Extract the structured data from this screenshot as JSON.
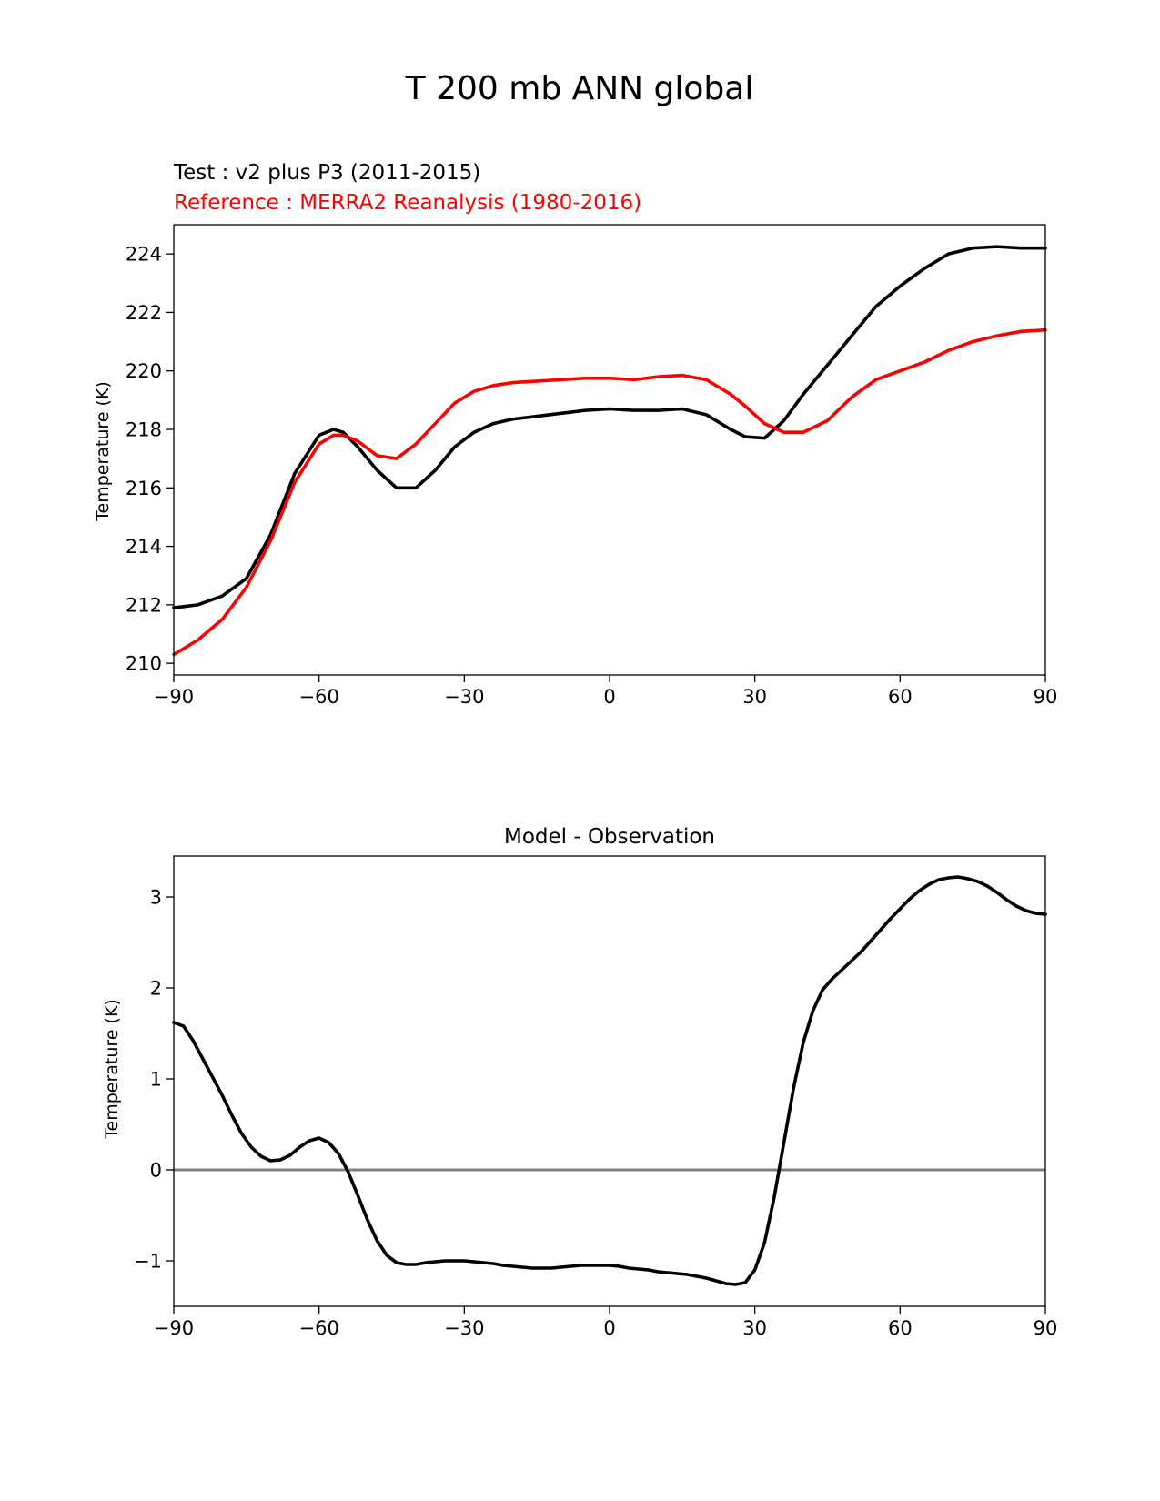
{
  "figure": {
    "title": "T 200 mb ANN global"
  },
  "colors": {
    "test": "#000000",
    "reference": "#ff0000",
    "zero_line": "#808080"
  },
  "chart_data": [
    {
      "type": "line",
      "test_label": "Test : v2 plus P3 (2011-2015)",
      "reference_label": "Reference : MERRA2 Reanalysis (1980-2016)",
      "xlabel": "",
      "ylabel": "Temperature (K)",
      "xlim": [
        -90,
        90
      ],
      "ylim": [
        209.6,
        225
      ],
      "xticks": [
        -90,
        -60,
        -30,
        0,
        30,
        60,
        90
      ],
      "xtick_labels": [
        "−90",
        "−60",
        "−30",
        "0",
        "30",
        "60",
        "90"
      ],
      "yticks": [
        210,
        212,
        214,
        216,
        218,
        220,
        222,
        224
      ],
      "ytick_labels": [
        "210",
        "212",
        "214",
        "216",
        "218",
        "220",
        "222",
        "224"
      ],
      "series": [
        {
          "name": "Test",
          "x": [
            -90,
            -85,
            -80,
            -75,
            -70,
            -65,
            -60,
            -57,
            -55,
            -52,
            -48,
            -44,
            -40,
            -36,
            -32,
            -28,
            -24,
            -20,
            -15,
            -10,
            -5,
            0,
            5,
            10,
            15,
            20,
            25,
            28,
            32,
            36,
            40,
            45,
            50,
            55,
            60,
            65,
            70,
            75,
            80,
            85,
            90
          ],
          "values": [
            211.9,
            212.0,
            212.3,
            212.9,
            214.4,
            216.5,
            217.8,
            218.0,
            217.9,
            217.4,
            216.6,
            216.0,
            216.0,
            216.6,
            217.4,
            217.9,
            218.2,
            218.35,
            218.45,
            218.55,
            218.65,
            218.7,
            218.65,
            218.65,
            218.7,
            218.5,
            218.0,
            217.75,
            217.7,
            218.3,
            219.2,
            220.2,
            221.2,
            222.2,
            222.9,
            223.5,
            224.0,
            224.2,
            224.25,
            224.2,
            224.2
          ]
        },
        {
          "name": "Reference",
          "x": [
            -90,
            -85,
            -80,
            -75,
            -70,
            -65,
            -60,
            -57,
            -55,
            -52,
            -48,
            -44,
            -40,
            -36,
            -32,
            -28,
            -24,
            -20,
            -15,
            -10,
            -5,
            0,
            5,
            10,
            15,
            20,
            25,
            28,
            32,
            36,
            40,
            45,
            50,
            55,
            60,
            65,
            70,
            75,
            80,
            85,
            90
          ],
          "values": [
            210.3,
            210.8,
            211.5,
            212.6,
            214.2,
            216.2,
            217.5,
            217.8,
            217.8,
            217.6,
            217.1,
            217.0,
            217.5,
            218.2,
            218.9,
            219.3,
            219.5,
            219.6,
            219.65,
            219.7,
            219.75,
            219.75,
            219.7,
            219.8,
            219.85,
            219.7,
            219.2,
            218.8,
            218.2,
            217.9,
            217.9,
            218.3,
            219.1,
            219.7,
            220.0,
            220.3,
            220.7,
            221.0,
            221.2,
            221.35,
            221.4
          ]
        }
      ]
    },
    {
      "type": "line",
      "title": "Model - Observation",
      "xlabel": "",
      "ylabel": "Temperature (K)",
      "xlim": [
        -90,
        90
      ],
      "ylim": [
        -1.5,
        3.45
      ],
      "xticks": [
        -90,
        -60,
        -30,
        0,
        30,
        60,
        90
      ],
      "xtick_labels": [
        "−90",
        "−60",
        "−30",
        "0",
        "30",
        "60",
        "90"
      ],
      "yticks": [
        -1,
        0,
        1,
        2,
        3
      ],
      "ytick_labels": [
        "−1",
        "0",
        "1",
        "2",
        "3"
      ],
      "zero_line": 0,
      "series": [
        {
          "name": "Model - Observation",
          "x": [
            -90,
            -88,
            -86,
            -84,
            -82,
            -80,
            -78,
            -76,
            -74,
            -72,
            -70,
            -68,
            -66,
            -64,
            -62,
            -60,
            -58,
            -56,
            -54,
            -52,
            -50,
            -48,
            -46,
            -44,
            -42,
            -40,
            -38,
            -36,
            -34,
            -32,
            -30,
            -28,
            -26,
            -24,
            -22,
            -20,
            -18,
            -16,
            -14,
            -12,
            -10,
            -8,
            -6,
            -4,
            -2,
            0,
            2,
            4,
            6,
            8,
            10,
            12,
            14,
            16,
            18,
            20,
            22,
            24,
            26,
            28,
            30,
            32,
            34,
            36,
            38,
            40,
            42,
            44,
            46,
            48,
            50,
            52,
            54,
            56,
            58,
            60,
            62,
            64,
            66,
            68,
            70,
            72,
            74,
            76,
            78,
            80,
            82,
            84,
            86,
            88,
            90
          ],
          "values": [
            1.62,
            1.58,
            1.42,
            1.22,
            1.02,
            0.82,
            0.6,
            0.4,
            0.25,
            0.15,
            0.1,
            0.11,
            0.16,
            0.25,
            0.32,
            0.35,
            0.3,
            0.18,
            -0.02,
            -0.28,
            -0.55,
            -0.78,
            -0.94,
            -1.02,
            -1.04,
            -1.04,
            -1.02,
            -1.01,
            -1.0,
            -1.0,
            -1.0,
            -1.01,
            -1.02,
            -1.03,
            -1.05,
            -1.06,
            -1.07,
            -1.08,
            -1.08,
            -1.08,
            -1.07,
            -1.06,
            -1.05,
            -1.05,
            -1.05,
            -1.05,
            -1.06,
            -1.08,
            -1.09,
            -1.1,
            -1.12,
            -1.13,
            -1.14,
            -1.15,
            -1.17,
            -1.19,
            -1.22,
            -1.25,
            -1.26,
            -1.24,
            -1.1,
            -0.8,
            -0.3,
            0.3,
            0.9,
            1.4,
            1.75,
            1.98,
            2.1,
            2.2,
            2.3,
            2.4,
            2.52,
            2.64,
            2.76,
            2.87,
            2.98,
            3.07,
            3.14,
            3.19,
            3.21,
            3.22,
            3.2,
            3.17,
            3.12,
            3.05,
            2.97,
            2.9,
            2.85,
            2.82,
            2.81
          ]
        }
      ]
    }
  ]
}
